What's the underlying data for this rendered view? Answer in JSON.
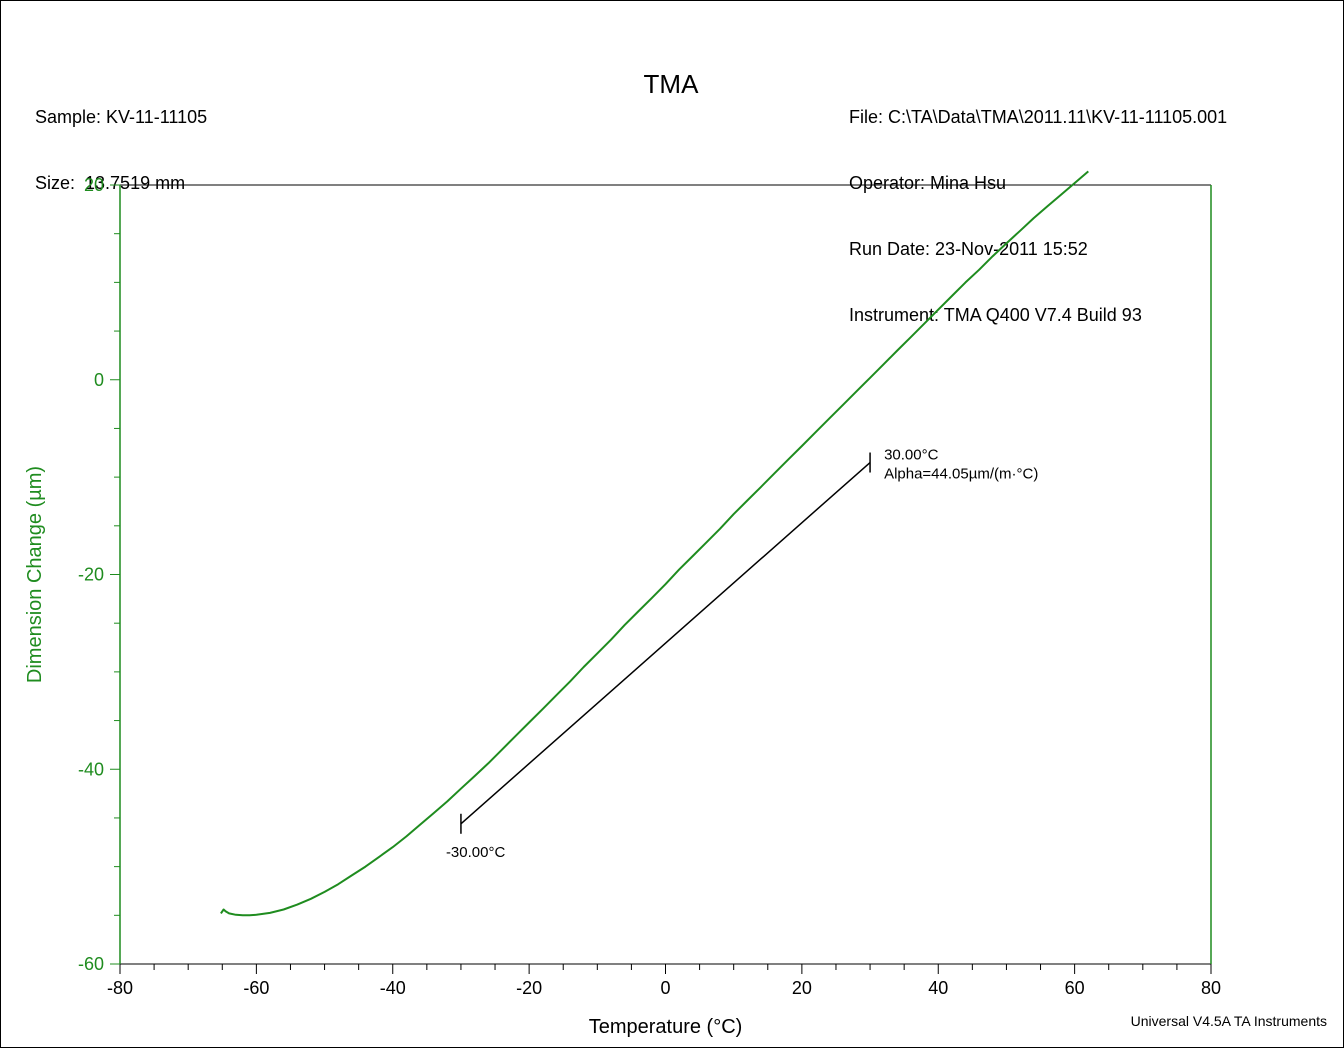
{
  "header": {
    "left_lines": [
      "Sample: KV-11-11105",
      "Size:  13.7519 mm"
    ],
    "right_lines": [
      "File: C:\\TA\\Data\\TMA\\2011.11\\KV-11-11105.001",
      "Operator: Mina Hsu",
      "Run Date: 23-Nov-2011 15:52",
      "Instrument: TMA Q400 V7.4 Build 93"
    ]
  },
  "footer": "Universal V4.5A TA Instruments",
  "colors": {
    "series": "#1f8c1f",
    "axis_left": "#1f8c1f",
    "fit_line": "#000000"
  },
  "chart_data": {
    "type": "line",
    "title": "TMA",
    "xlabel": "Temperature (°C)",
    "ylabel": "Dimension Change (µm)",
    "xlim": [
      -80,
      80
    ],
    "ylim": [
      -60,
      20
    ],
    "xticks": [
      -80,
      -60,
      -40,
      -20,
      0,
      20,
      40,
      60,
      80
    ],
    "yticks": [
      -60,
      -40,
      -20,
      0,
      20
    ],
    "grid": false,
    "series": [
      {
        "x": [
          -65.2,
          -64.8,
          -64.5,
          -64,
          -63,
          -62,
          -61,
          -60,
          -58,
          -56,
          -54,
          -52,
          -50,
          -48,
          -46,
          -44,
          -42,
          -40,
          -38,
          -36,
          -34,
          -32,
          -30,
          -28,
          -26,
          -24,
          -22,
          -20,
          -18,
          -16,
          -14,
          -12,
          -10,
          -8,
          -6,
          -4,
          -2,
          0,
          2,
          4,
          6,
          8,
          10,
          12,
          14,
          16,
          18,
          20,
          22,
          24,
          26,
          28,
          30,
          32,
          34,
          36,
          38,
          40,
          42,
          44,
          46,
          48,
          50,
          52,
          54,
          56,
          58,
          60,
          62
        ],
        "y": [
          -54.8,
          -54.4,
          -54.6,
          -54.8,
          -54.95,
          -55.0,
          -55.0,
          -54.95,
          -54.75,
          -54.4,
          -53.9,
          -53.3,
          -52.6,
          -51.8,
          -50.9,
          -50.0,
          -49.0,
          -48.0,
          -46.9,
          -45.7,
          -44.5,
          -43.3,
          -42.0,
          -40.7,
          -39.4,
          -38.0,
          -36.6,
          -35.2,
          -33.8,
          -32.4,
          -31.0,
          -29.5,
          -28.1,
          -26.7,
          -25.2,
          -23.8,
          -22.4,
          -21.0,
          -19.5,
          -18.1,
          -16.7,
          -15.3,
          -13.8,
          -12.4,
          -11.0,
          -9.6,
          -8.2,
          -6.8,
          -5.4,
          -4.0,
          -2.6,
          -1.2,
          0.2,
          1.6,
          3.0,
          4.4,
          5.8,
          7.2,
          8.6,
          10.0,
          11.3,
          12.7,
          14.0,
          15.3,
          16.6,
          17.8,
          19.0,
          20.2,
          21.4
        ]
      }
    ],
    "fit_line": {
      "x": [
        -30,
        30
      ],
      "y": [
        -45.6,
        -8.5
      ]
    },
    "annotations": {
      "start_label": "-30.00°C",
      "end_label": "30.00°C",
      "alpha_label": "Alpha=44.05µm/(m·°C)"
    }
  }
}
